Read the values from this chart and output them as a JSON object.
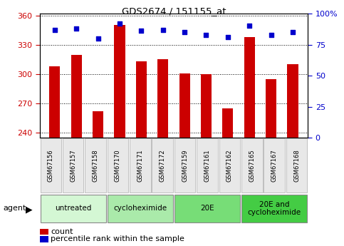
{
  "title": "GDS2674 / 151155_at",
  "samples": [
    "GSM67156",
    "GSM67157",
    "GSM67158",
    "GSM67170",
    "GSM67171",
    "GSM67172",
    "GSM67159",
    "GSM67161",
    "GSM67162",
    "GSM67165",
    "GSM67167",
    "GSM67168"
  ],
  "counts": [
    308,
    320,
    262,
    350,
    313,
    315,
    301,
    300,
    265,
    338,
    295,
    310
  ],
  "percentile_ranks": [
    87,
    88,
    80,
    92,
    86,
    87,
    85,
    83,
    81,
    90,
    83,
    85
  ],
  "ylim_left": [
    235,
    362
  ],
  "ylim_right": [
    0,
    100
  ],
  "yticks_left": [
    240,
    270,
    300,
    330,
    360
  ],
  "yticks_right": [
    0,
    25,
    50,
    75,
    100
  ],
  "bar_color": "#cc0000",
  "dot_color": "#0000cc",
  "bg_color": "#ffffff",
  "group_colors": [
    "#d4f7d4",
    "#aaeaaa",
    "#77dd77",
    "#44cc44"
  ],
  "groups": [
    {
      "label": "untreated",
      "start": 0,
      "end": 3
    },
    {
      "label": "cycloheximide",
      "start": 3,
      "end": 6
    },
    {
      "label": "20E",
      "start": 6,
      "end": 9
    },
    {
      "label": "20E and\ncycloheximide",
      "start": 9,
      "end": 12
    }
  ],
  "tick_color_left": "#cc0000",
  "tick_color_right": "#0000cc",
  "tick_labelsize": 8,
  "xtick_labelsize": 6.5,
  "bar_width": 0.5,
  "dot_marker": "s",
  "dot_size": 20
}
